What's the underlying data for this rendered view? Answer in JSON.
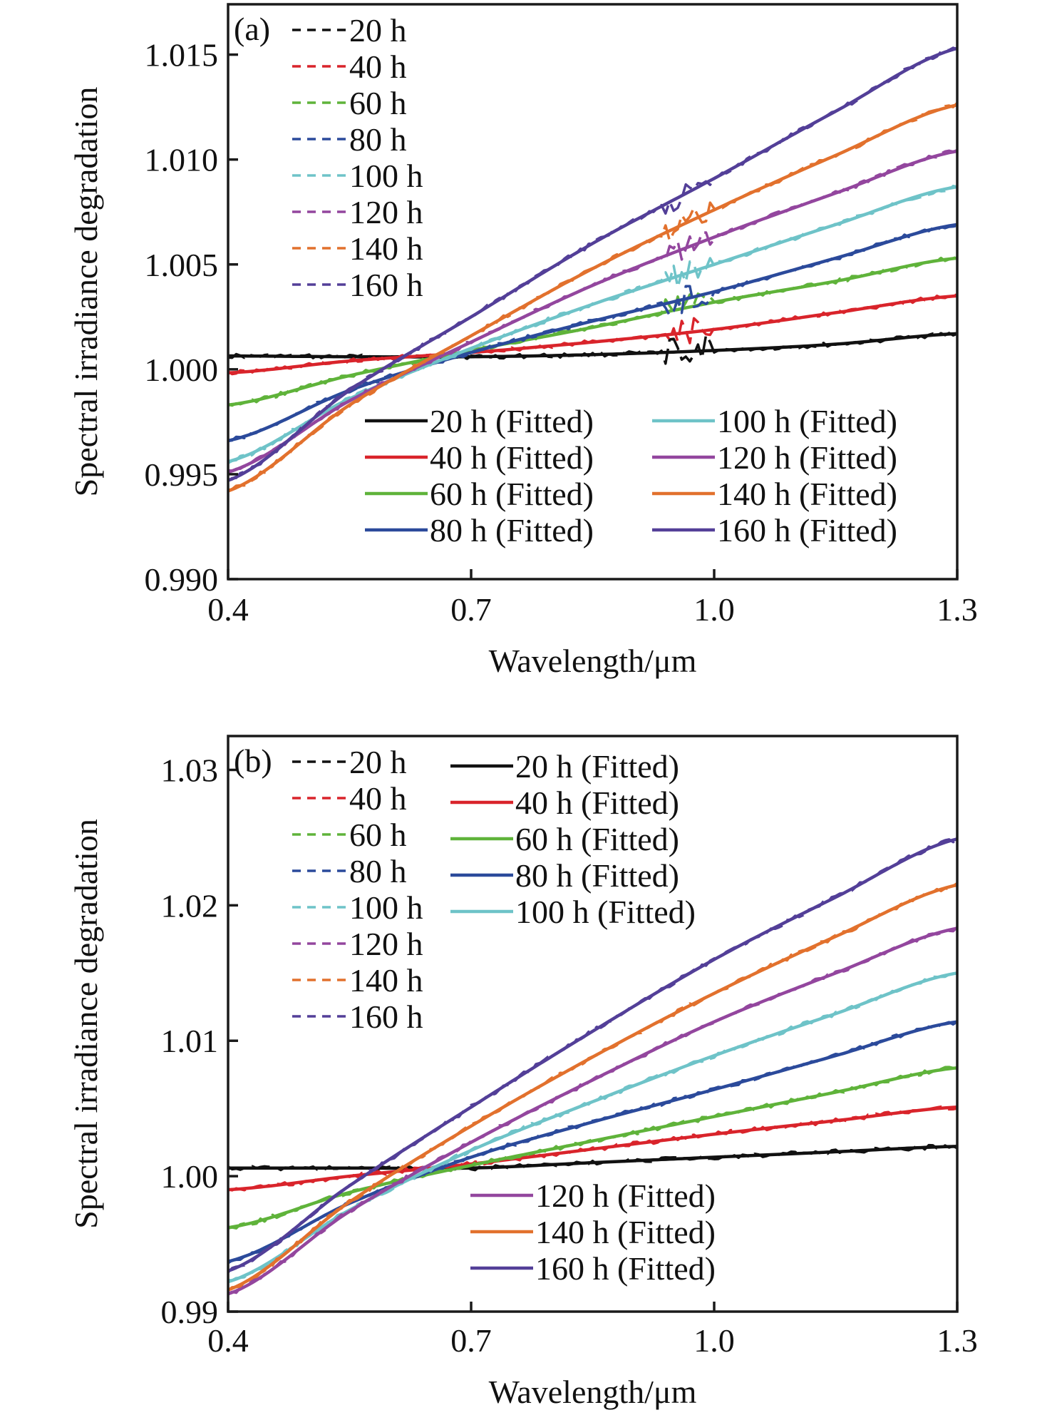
{
  "figure": {
    "panels_description": "Two panels of spectral irradiance degradation vs wavelength"
  },
  "colors": {
    "20 h": "#111111",
    "40 h": "#d9242b",
    "60 h": "#5fb33a",
    "80 h": "#2b4a9b",
    "100 h": "#6ec3c8",
    "120 h": "#93469e",
    "140 h": "#e2712d",
    "160 h": "#533f98"
  },
  "chart_data": [
    {
      "type": "line",
      "panel_label": "(a)",
      "title": "",
      "xlabel": "Wavelength/μm",
      "ylabel": "Spectral irradiance degradation",
      "xlim": [
        0.4,
        1.3
      ],
      "ylim": [
        0.99,
        1.0174
      ],
      "xticks": [
        0.4,
        0.7,
        1.0,
        1.3
      ],
      "xtick_labels": [
        "0.4",
        "0.7",
        "1.0",
        "1.3"
      ],
      "yticks": [
        0.99,
        0.995,
        1.0,
        1.005,
        1.01,
        1.015
      ],
      "ytick_labels": [
        "0.990",
        "0.995",
        "1.000",
        "1.005",
        "1.010",
        "1.015"
      ],
      "grid": false,
      "x": [
        0.4,
        0.55,
        0.7,
        0.85,
        1.0,
        1.15,
        1.3
      ],
      "measured_noise_feature": {
        "x_center": 0.97,
        "description": "noisy absorption spike near 0.97 μm"
      },
      "legend_measured": {
        "placement": "top-left",
        "entries": [
          "20 h",
          "40 h",
          "60 h",
          "80 h",
          "100 h",
          "120 h",
          "140 h",
          "160 h"
        ]
      },
      "legend_fitted": {
        "placement": "lower-right",
        "columns": 2,
        "entries": [
          "20 h (Fitted)",
          "40 h (Fitted)",
          "60 h (Fitted)",
          "80 h (Fitted)",
          "100 h (Fitted)",
          "120 h (Fitted)",
          "140 h (Fitted)",
          "160 h (Fitted)"
        ]
      },
      "series": [
        {
          "name": "20 h",
          "values": [
            1.00064,
            1.0006,
            1.0006,
            1.0007,
            1.0009,
            1.0012,
            1.0017
          ]
        },
        {
          "name": "40 h",
          "values": [
            0.99983,
            1.0004,
            1.0008,
            1.0013,
            1.0019,
            1.0027,
            1.0035
          ]
        },
        {
          "name": "60 h",
          "values": [
            0.9983,
            0.9997,
            1.0009,
            1.002,
            1.0032,
            1.0042,
            1.0053
          ]
        },
        {
          "name": "80 h",
          "values": [
            0.9966,
            0.999,
            1.0008,
            1.0023,
            1.0037,
            1.0053,
            1.0069
          ]
        },
        {
          "name": "100 h",
          "values": [
            0.9956,
            0.9986,
            1.001,
            1.0031,
            1.005,
            1.0069,
            1.0087
          ]
        },
        {
          "name": "120 h",
          "values": [
            0.9951,
            0.9985,
            1.0013,
            1.004,
            1.0063,
            1.0084,
            1.0104
          ]
        },
        {
          "name": "140 h",
          "values": [
            0.9942,
            0.9983,
            1.0016,
            1.0048,
            1.0076,
            1.0102,
            1.0126
          ]
        },
        {
          "name": "160 h",
          "values": [
            0.9947,
            0.999,
            1.0025,
            1.006,
            1.0091,
            1.0123,
            1.0153
          ]
        }
      ]
    },
    {
      "type": "line",
      "panel_label": "(b)",
      "title": "",
      "xlabel": "Wavelength/μm",
      "ylabel": "Spectral irradiance degradation",
      "xlim": [
        0.4,
        1.3
      ],
      "ylim": [
        0.99,
        1.0325
      ],
      "xticks": [
        0.4,
        0.7,
        1.0,
        1.3
      ],
      "xtick_labels": [
        "0.4",
        "0.7",
        "1.0",
        "1.3"
      ],
      "yticks": [
        0.99,
        1.0,
        1.01,
        1.02,
        1.03
      ],
      "ytick_labels": [
        "0.99",
        "1.00",
        "1.01",
        "1.02",
        "1.03"
      ],
      "grid": false,
      "x": [
        0.4,
        0.55,
        0.7,
        0.85,
        1.0,
        1.15,
        1.3
      ],
      "legend_measured": {
        "placement": "top-left",
        "entries": [
          "20 h",
          "40 h",
          "60 h",
          "80 h",
          "100 h",
          "120 h",
          "140 h",
          "160 h"
        ]
      },
      "legend_fitted_upper": {
        "placement": "top-center",
        "entries": [
          "20 h (Fitted)",
          "40 h (Fitted)",
          "60 h (Fitted)",
          "80 h (Fitted)",
          "100 h (Fitted)"
        ]
      },
      "legend_fitted_lower": {
        "placement": "lower-center",
        "entries": [
          "120 h (Fitted)",
          "140 h (Fitted)",
          "160 h (Fitted)"
        ]
      },
      "series": [
        {
          "name": "20 h",
          "values": [
            1.0006,
            1.0006,
            1.0006,
            1.001,
            1.0014,
            1.0018,
            1.0022
          ]
        },
        {
          "name": "40 h",
          "values": [
            0.999,
            1.0,
            1.0009,
            1.002,
            1.0031,
            1.0041,
            1.0051
          ]
        },
        {
          "name": "60 h",
          "values": [
            0.9962,
            0.9988,
            1.0008,
            1.0026,
            1.0044,
            1.0062,
            1.008
          ]
        },
        {
          "name": "80 h",
          "values": [
            0.9937,
            0.998,
            1.0014,
            1.004,
            1.0064,
            1.0089,
            1.0114
          ]
        },
        {
          "name": "100 h",
          "values": [
            0.9922,
            0.9975,
            1.0019,
            1.0055,
            1.0089,
            1.012,
            1.015
          ]
        },
        {
          "name": "120 h",
          "values": [
            0.9913,
            0.9974,
            1.0025,
            1.0071,
            1.0114,
            1.015,
            1.0183
          ]
        },
        {
          "name": "140 h",
          "values": [
            0.9916,
            0.9981,
            1.0037,
            1.0088,
            1.0135,
            1.0177,
            1.0215
          ]
        },
        {
          "name": "160 h",
          "values": [
            0.993,
            0.9993,
            1.0051,
            1.0107,
            1.016,
            1.0206,
            1.0249
          ]
        }
      ]
    }
  ]
}
